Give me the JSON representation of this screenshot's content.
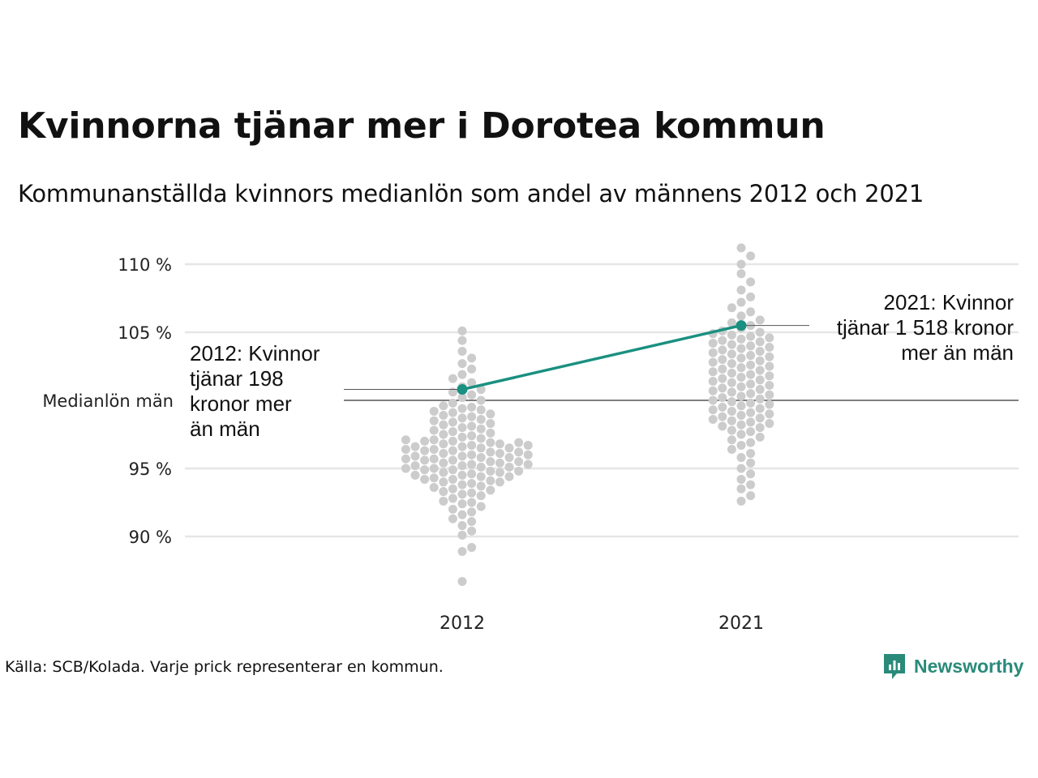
{
  "title": "Kvinnorna tjänar mer i Dorotea kommun",
  "subtitle": "Kommunanställda kvinnors medianlön som andel av männens 2012 och 2021",
  "source": "Källa: SCB/Kolada. Varje prick representerar en kommun.",
  "brand": {
    "name": "Newsworthy",
    "icon": "newsworthy-logo-icon",
    "color": "#2a8a7a"
  },
  "chart_data": {
    "type": "scatter",
    "categories": [
      "2012",
      "2021"
    ],
    "y_ticks": [
      90,
      95,
      105,
      110
    ],
    "y_tick_labels": [
      "90 %",
      "95 %",
      "105 %",
      "110 %"
    ],
    "ylim": [
      85,
      112
    ],
    "reference_line": {
      "value": 100,
      "label": "Medianlön män"
    },
    "grid": true,
    "colors": {
      "dots": "#cccccc",
      "highlight": "#1a9080",
      "gridline": "#e6e6e6",
      "reference": "#333333"
    },
    "highlight": {
      "values": [
        100.8,
        105.5
      ],
      "annotations": [
        [
          "2012: Kvinnor",
          "tjänar 198",
          "kronor mer",
          "än män"
        ],
        [
          "2021: Kvinnor",
          "tjänar 1 518 kronor",
          "mer än män"
        ]
      ]
    },
    "series": [
      {
        "values": [
          86.7,
          88.9,
          89.2,
          90.1,
          90.4,
          90.8,
          91.1,
          91.3,
          91.6,
          91.8,
          92.0,
          92.2,
          92.4,
          92.5,
          92.6,
          92.8,
          93.0,
          93.1,
          93.2,
          93.3,
          93.4,
          93.5,
          93.6,
          93.7,
          93.8,
          93.9,
          94.0,
          94.0,
          94.1,
          94.2,
          94.2,
          94.3,
          94.4,
          94.4,
          94.5,
          94.5,
          94.6,
          94.7,
          94.7,
          94.8,
          94.8,
          94.9,
          94.9,
          95.0,
          95.0,
          95.1,
          95.1,
          95.2,
          95.2,
          95.3,
          95.3,
          95.4,
          95.4,
          95.5,
          95.5,
          95.6,
          95.6,
          95.7,
          95.7,
          95.8,
          95.8,
          95.9,
          95.9,
          96.0,
          96.0,
          96.1,
          96.1,
          96.2,
          96.2,
          96.3,
          96.3,
          96.4,
          96.4,
          96.5,
          96.5,
          96.6,
          96.6,
          96.7,
          96.7,
          96.8,
          96.8,
          96.9,
          96.9,
          97.0,
          97.0,
          97.1,
          97.1,
          97.2,
          97.3,
          97.4,
          97.5,
          97.6,
          97.7,
          97.8,
          97.9,
          98.0,
          98.1,
          98.2,
          98.3,
          98.4,
          98.5,
          98.6,
          98.7,
          98.8,
          98.9,
          99.0,
          99.1,
          99.2,
          99.3,
          99.4,
          99.5,
          99.6,
          99.8,
          100.0,
          100.2,
          100.4,
          100.6,
          100.8,
          101.0,
          101.3,
          101.6,
          101.9,
          102.3,
          102.7,
          103.1,
          103.6,
          104.4,
          105.1
        ]
      },
      {
        "values": [
          92.6,
          93.0,
          93.5,
          93.8,
          94.2,
          94.6,
          95.0,
          95.4,
          95.8,
          96.1,
          96.4,
          96.7,
          96.9,
          97.1,
          97.3,
          97.5,
          97.7,
          97.8,
          98.0,
          98.1,
          98.2,
          98.3,
          98.4,
          98.5,
          98.6,
          98.7,
          98.8,
          98.9,
          99.0,
          99.1,
          99.2,
          99.3,
          99.4,
          99.5,
          99.6,
          99.7,
          99.8,
          99.9,
          100.0,
          100.1,
          100.2,
          100.3,
          100.4,
          100.5,
          100.6,
          100.7,
          100.8,
          100.9,
          101.0,
          101.1,
          101.2,
          101.3,
          101.4,
          101.5,
          101.6,
          101.7,
          101.8,
          101.9,
          102.0,
          102.1,
          102.2,
          102.3,
          102.4,
          102.5,
          102.6,
          102.7,
          102.8,
          102.9,
          103.0,
          103.1,
          103.2,
          103.3,
          103.4,
          103.5,
          103.6,
          103.7,
          103.8,
          103.9,
          104.0,
          104.1,
          104.2,
          104.3,
          104.4,
          104.5,
          104.6,
          104.7,
          104.8,
          104.9,
          105.0,
          105.1,
          105.3,
          105.5,
          105.7,
          105.9,
          106.2,
          106.5,
          106.8,
          107.2,
          107.6,
          108.1,
          108.7,
          109.3,
          110.0,
          110.6,
          111.2
        ]
      }
    ]
  }
}
